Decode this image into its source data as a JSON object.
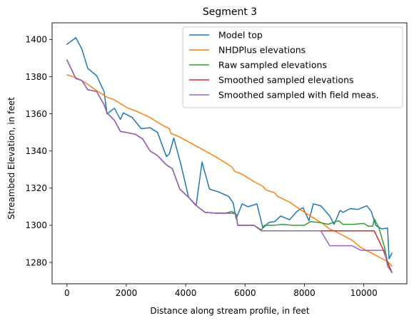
{
  "chart_data": {
    "type": "line",
    "title": "Segment 3",
    "xlabel": "Distance along stream profile, in feet",
    "ylabel": "Streambed Elevation, in feet",
    "xlim": [
      -500,
      11450
    ],
    "ylim": [
      1268.5,
      1409
    ],
    "xticks": [
      0,
      2000,
      4000,
      6000,
      8000,
      10000
    ],
    "yticks": [
      1280,
      1300,
      1320,
      1340,
      1360,
      1380,
      1400
    ],
    "legend_position": "top-right",
    "grid": false,
    "series": [
      {
        "name": "Model top",
        "color": "#1f77b4",
        "points": [
          [
            0,
            1397.5
          ],
          [
            300,
            1401
          ],
          [
            500,
            1395
          ],
          [
            700,
            1384.5
          ],
          [
            1000,
            1380.5
          ],
          [
            1250,
            1372
          ],
          [
            1350,
            1360
          ],
          [
            1600,
            1363
          ],
          [
            1800,
            1357
          ],
          [
            1900,
            1360.5
          ],
          [
            2200,
            1358
          ],
          [
            2500,
            1352
          ],
          [
            2800,
            1352.5
          ],
          [
            3050,
            1350
          ],
          [
            3350,
            1337
          ],
          [
            3450,
            1338.5
          ],
          [
            3600,
            1347
          ],
          [
            3850,
            1332
          ],
          [
            4100,
            1315
          ],
          [
            4350,
            1310.5
          ],
          [
            4550,
            1334
          ],
          [
            4800,
            1319.5
          ],
          [
            5100,
            1318
          ],
          [
            5450,
            1315.5
          ],
          [
            5600,
            1312
          ],
          [
            5700,
            1303.5
          ],
          [
            5900,
            1311.5
          ],
          [
            6100,
            1310
          ],
          [
            6400,
            1311.5
          ],
          [
            6600,
            1298.5
          ],
          [
            6800,
            1301.5
          ],
          [
            7000,
            1302
          ],
          [
            7200,
            1305
          ],
          [
            7500,
            1303
          ],
          [
            7750,
            1307.5
          ],
          [
            7950,
            1309.5
          ],
          [
            8150,
            1302.5
          ],
          [
            8300,
            1311.5
          ],
          [
            8550,
            1310.5
          ],
          [
            8850,
            1305
          ],
          [
            9000,
            1300.5
          ],
          [
            9200,
            1308
          ],
          [
            9300,
            1307
          ],
          [
            9550,
            1309
          ],
          [
            9800,
            1308.5
          ],
          [
            10100,
            1310.5
          ],
          [
            10250,
            1307.5
          ],
          [
            10400,
            1300
          ],
          [
            10600,
            1298
          ],
          [
            10800,
            1298.5
          ],
          [
            10850,
            1282
          ],
          [
            10950,
            1285
          ]
        ]
      },
      {
        "name": "NHDPlus elevations",
        "color": "#ff7f0e",
        "points": [
          [
            0,
            1381
          ],
          [
            300,
            1379.5
          ],
          [
            600,
            1377
          ],
          [
            1000,
            1372.5
          ],
          [
            1350,
            1369
          ],
          [
            1600,
            1367.5
          ],
          [
            2000,
            1363.5
          ],
          [
            2400,
            1361
          ],
          [
            2800,
            1358
          ],
          [
            3200,
            1354
          ],
          [
            3450,
            1352
          ],
          [
            3500,
            1349.5
          ],
          [
            3800,
            1347.5
          ],
          [
            4200,
            1344
          ],
          [
            4600,
            1340.5
          ],
          [
            5000,
            1337
          ],
          [
            5300,
            1334
          ],
          [
            5550,
            1331.5
          ],
          [
            5650,
            1329
          ],
          [
            5900,
            1327.5
          ],
          [
            6300,
            1323.5
          ],
          [
            6600,
            1321
          ],
          [
            6700,
            1319
          ],
          [
            7000,
            1317.5
          ],
          [
            7100,
            1315.5
          ],
          [
            7500,
            1312.5
          ],
          [
            7900,
            1308
          ],
          [
            8300,
            1304
          ],
          [
            8650,
            1300.5
          ],
          [
            8850,
            1298
          ],
          [
            9000,
            1297
          ],
          [
            9300,
            1294.5
          ],
          [
            9600,
            1292
          ],
          [
            9900,
            1288
          ],
          [
            10200,
            1285.5
          ],
          [
            10500,
            1283
          ],
          [
            10800,
            1280.5
          ],
          [
            10950,
            1278
          ]
        ]
      },
      {
        "name": "Raw sampled elevations",
        "color": "#2ca02c",
        "points": [
          [
            0,
            1389
          ],
          [
            300,
            1379
          ],
          [
            500,
            1378
          ],
          [
            700,
            1373
          ],
          [
            1000,
            1372
          ],
          [
            1250,
            1365
          ],
          [
            1350,
            1360.5
          ],
          [
            1600,
            1356.5
          ],
          [
            1800,
            1350.5
          ],
          [
            2000,
            1350
          ],
          [
            2300,
            1349
          ],
          [
            2550,
            1346.5
          ],
          [
            2800,
            1340
          ],
          [
            3050,
            1337.5
          ],
          [
            3350,
            1332.5
          ],
          [
            3550,
            1330.5
          ],
          [
            3800,
            1319.5
          ],
          [
            4100,
            1315
          ],
          [
            4400,
            1310
          ],
          [
            4650,
            1307
          ],
          [
            5000,
            1306.5
          ],
          [
            5350,
            1306.5
          ],
          [
            5550,
            1307.5
          ],
          [
            5700,
            1306
          ],
          [
            5750,
            1300
          ],
          [
            6300,
            1300
          ],
          [
            6550,
            1297.5
          ],
          [
            6650,
            1300
          ],
          [
            7000,
            1300
          ],
          [
            7250,
            1300.5
          ],
          [
            7600,
            1300
          ],
          [
            8000,
            1300
          ],
          [
            8200,
            1302
          ],
          [
            8500,
            1301.5
          ],
          [
            8800,
            1300.5
          ],
          [
            9150,
            1302.5
          ],
          [
            9300,
            1300.5
          ],
          [
            9650,
            1300.5
          ],
          [
            10000,
            1301
          ],
          [
            10150,
            1299.5
          ],
          [
            10300,
            1299.5
          ],
          [
            10350,
            1303.5
          ],
          [
            10500,
            1299
          ],
          [
            10700,
            1288
          ],
          [
            10800,
            1280
          ],
          [
            10950,
            1274.5
          ]
        ]
      },
      {
        "name": "Smoothed sampled elevations",
        "color": "#d62728",
        "points": [
          [
            0,
            1389
          ],
          [
            300,
            1379
          ],
          [
            500,
            1378
          ],
          [
            700,
            1373
          ],
          [
            1000,
            1372
          ],
          [
            1250,
            1365
          ],
          [
            1350,
            1360.5
          ],
          [
            1600,
            1356.5
          ],
          [
            1800,
            1350.5
          ],
          [
            2000,
            1350
          ],
          [
            2300,
            1349
          ],
          [
            2550,
            1346.5
          ],
          [
            2800,
            1340
          ],
          [
            3050,
            1337.5
          ],
          [
            3350,
            1332.5
          ],
          [
            3550,
            1330.5
          ],
          [
            3800,
            1319.5
          ],
          [
            4100,
            1315
          ],
          [
            4400,
            1310
          ],
          [
            4650,
            1307
          ],
          [
            5000,
            1306.5
          ],
          [
            5350,
            1306.5
          ],
          [
            5550,
            1306.5
          ],
          [
            5700,
            1306
          ],
          [
            5750,
            1300
          ],
          [
            6300,
            1300
          ],
          [
            6550,
            1297
          ],
          [
            7000,
            1297
          ],
          [
            8000,
            1297
          ],
          [
            9000,
            1297
          ],
          [
            10000,
            1297
          ],
          [
            10350,
            1297
          ],
          [
            10650,
            1287
          ],
          [
            10800,
            1280
          ],
          [
            10950,
            1274.5
          ]
        ]
      },
      {
        "name": "Smoothed sampled with field meas.",
        "color": "#9467bd",
        "points": [
          [
            0,
            1389
          ],
          [
            300,
            1379
          ],
          [
            500,
            1378
          ],
          [
            700,
            1373
          ],
          [
            1000,
            1372
          ],
          [
            1250,
            1365
          ],
          [
            1350,
            1360.5
          ],
          [
            1600,
            1356.5
          ],
          [
            1800,
            1350.5
          ],
          [
            2000,
            1350
          ],
          [
            2300,
            1349
          ],
          [
            2550,
            1346.5
          ],
          [
            2800,
            1340
          ],
          [
            3050,
            1337.5
          ],
          [
            3350,
            1332.5
          ],
          [
            3550,
            1330.5
          ],
          [
            3800,
            1319.5
          ],
          [
            4100,
            1315
          ],
          [
            4400,
            1310
          ],
          [
            4650,
            1307
          ],
          [
            5000,
            1306.5
          ],
          [
            5350,
            1306.5
          ],
          [
            5550,
            1306.5
          ],
          [
            5700,
            1306
          ],
          [
            5750,
            1300
          ],
          [
            6300,
            1300
          ],
          [
            6550,
            1297
          ],
          [
            8000,
            1297
          ],
          [
            8550,
            1297
          ],
          [
            8850,
            1289
          ],
          [
            9600,
            1289
          ],
          [
            9900,
            1286.5
          ],
          [
            10350,
            1286.5
          ],
          [
            10700,
            1286.5
          ],
          [
            10800,
            1278
          ],
          [
            10950,
            1274.5
          ]
        ]
      }
    ]
  }
}
